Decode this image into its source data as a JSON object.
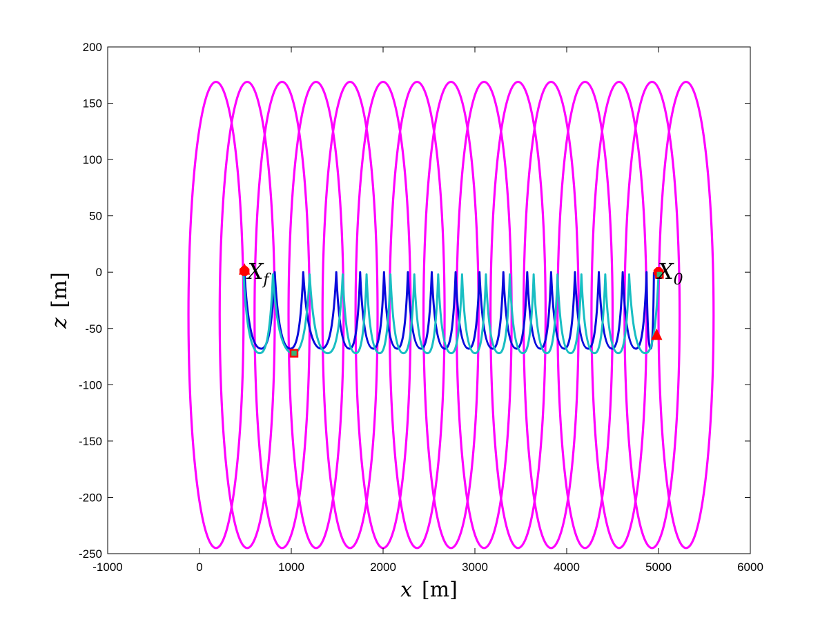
{
  "chart_data": {
    "type": "line",
    "title": "",
    "xlabel": "x",
    "xlabel_unit": "[m]",
    "ylabel": "z",
    "ylabel_unit": "[m]",
    "xlim": [
      -1000,
      6000
    ],
    "ylim": [
      -250,
      200
    ],
    "x_ticks": [
      -1000,
      0,
      1000,
      2000,
      3000,
      4000,
      5000,
      6000
    ],
    "x_tick_labels": [
      "-1000",
      "0",
      "1000",
      "2000",
      "3000",
      "4000",
      "5000",
      "6000"
    ],
    "y_ticks": [
      200,
      150,
      100,
      50,
      0,
      -50,
      -100,
      -150,
      -200,
      -250
    ],
    "y_tick_labels": [
      "200",
      "150",
      "100",
      "50",
      "0",
      "-50",
      "-100",
      "-150",
      "-200",
      "-250"
    ],
    "grid": false,
    "legend": "none",
    "colors": {
      "ellipses": "#ff00ff",
      "trajectory_a": "#0a0adc",
      "trajectory_b": "#19bec3",
      "markers": "#ff0000",
      "marker_fill": "#3cb371"
    },
    "series": [
      {
        "kind": "ellipses",
        "color": "#ff00ff",
        "semi_axis_x": 300,
        "center_z": -38,
        "semi_axis_z": 207,
        "center_x": [
          180,
          520,
          900,
          1270,
          1640,
          2000,
          2370,
          2740,
          3100,
          3470,
          3830,
          4200,
          4570,
          4930,
          5300
        ]
      },
      {
        "kind": "cusp-trajectory",
        "color": "#0a0adc",
        "start_x": 4950,
        "end_x": 490,
        "cusp_top_z": 0,
        "trough_z": -68,
        "cusp_x": [
          4870,
          4610,
          4350,
          4090,
          3830,
          3570,
          3310,
          3050,
          2790,
          2530,
          2270,
          2010,
          1750,
          1490,
          1130,
          820
        ]
      },
      {
        "kind": "cusp-trajectory",
        "color": "#19bec3",
        "start_x": 5000,
        "end_x": 480,
        "cusp_top_z": -2,
        "trough_z": -72,
        "cusp_x": [
          4680,
          4420,
          4160,
          3900,
          3640,
          3380,
          3120,
          2860,
          2600,
          2340,
          2080,
          1820,
          1560,
          1200,
          800
        ]
      }
    ],
    "markers": [
      {
        "shape": "octagon",
        "x": 5000,
        "z": 0
      },
      {
        "shape": "octagon",
        "x": 490,
        "z": 1
      },
      {
        "shape": "triangle",
        "x": 4980,
        "z": -56
      },
      {
        "shape": "triangle",
        "x": 490,
        "z": 2
      },
      {
        "shape": "square",
        "x": 1030,
        "z": -72
      },
      {
        "shape": "square",
        "x": 5010,
        "z": -2
      }
    ],
    "annotations": [
      {
        "text": "X",
        "sub": "f",
        "x": 640,
        "z": 0
      },
      {
        "text": "X",
        "sub": "0",
        "x": 5130,
        "z": 0
      }
    ]
  }
}
